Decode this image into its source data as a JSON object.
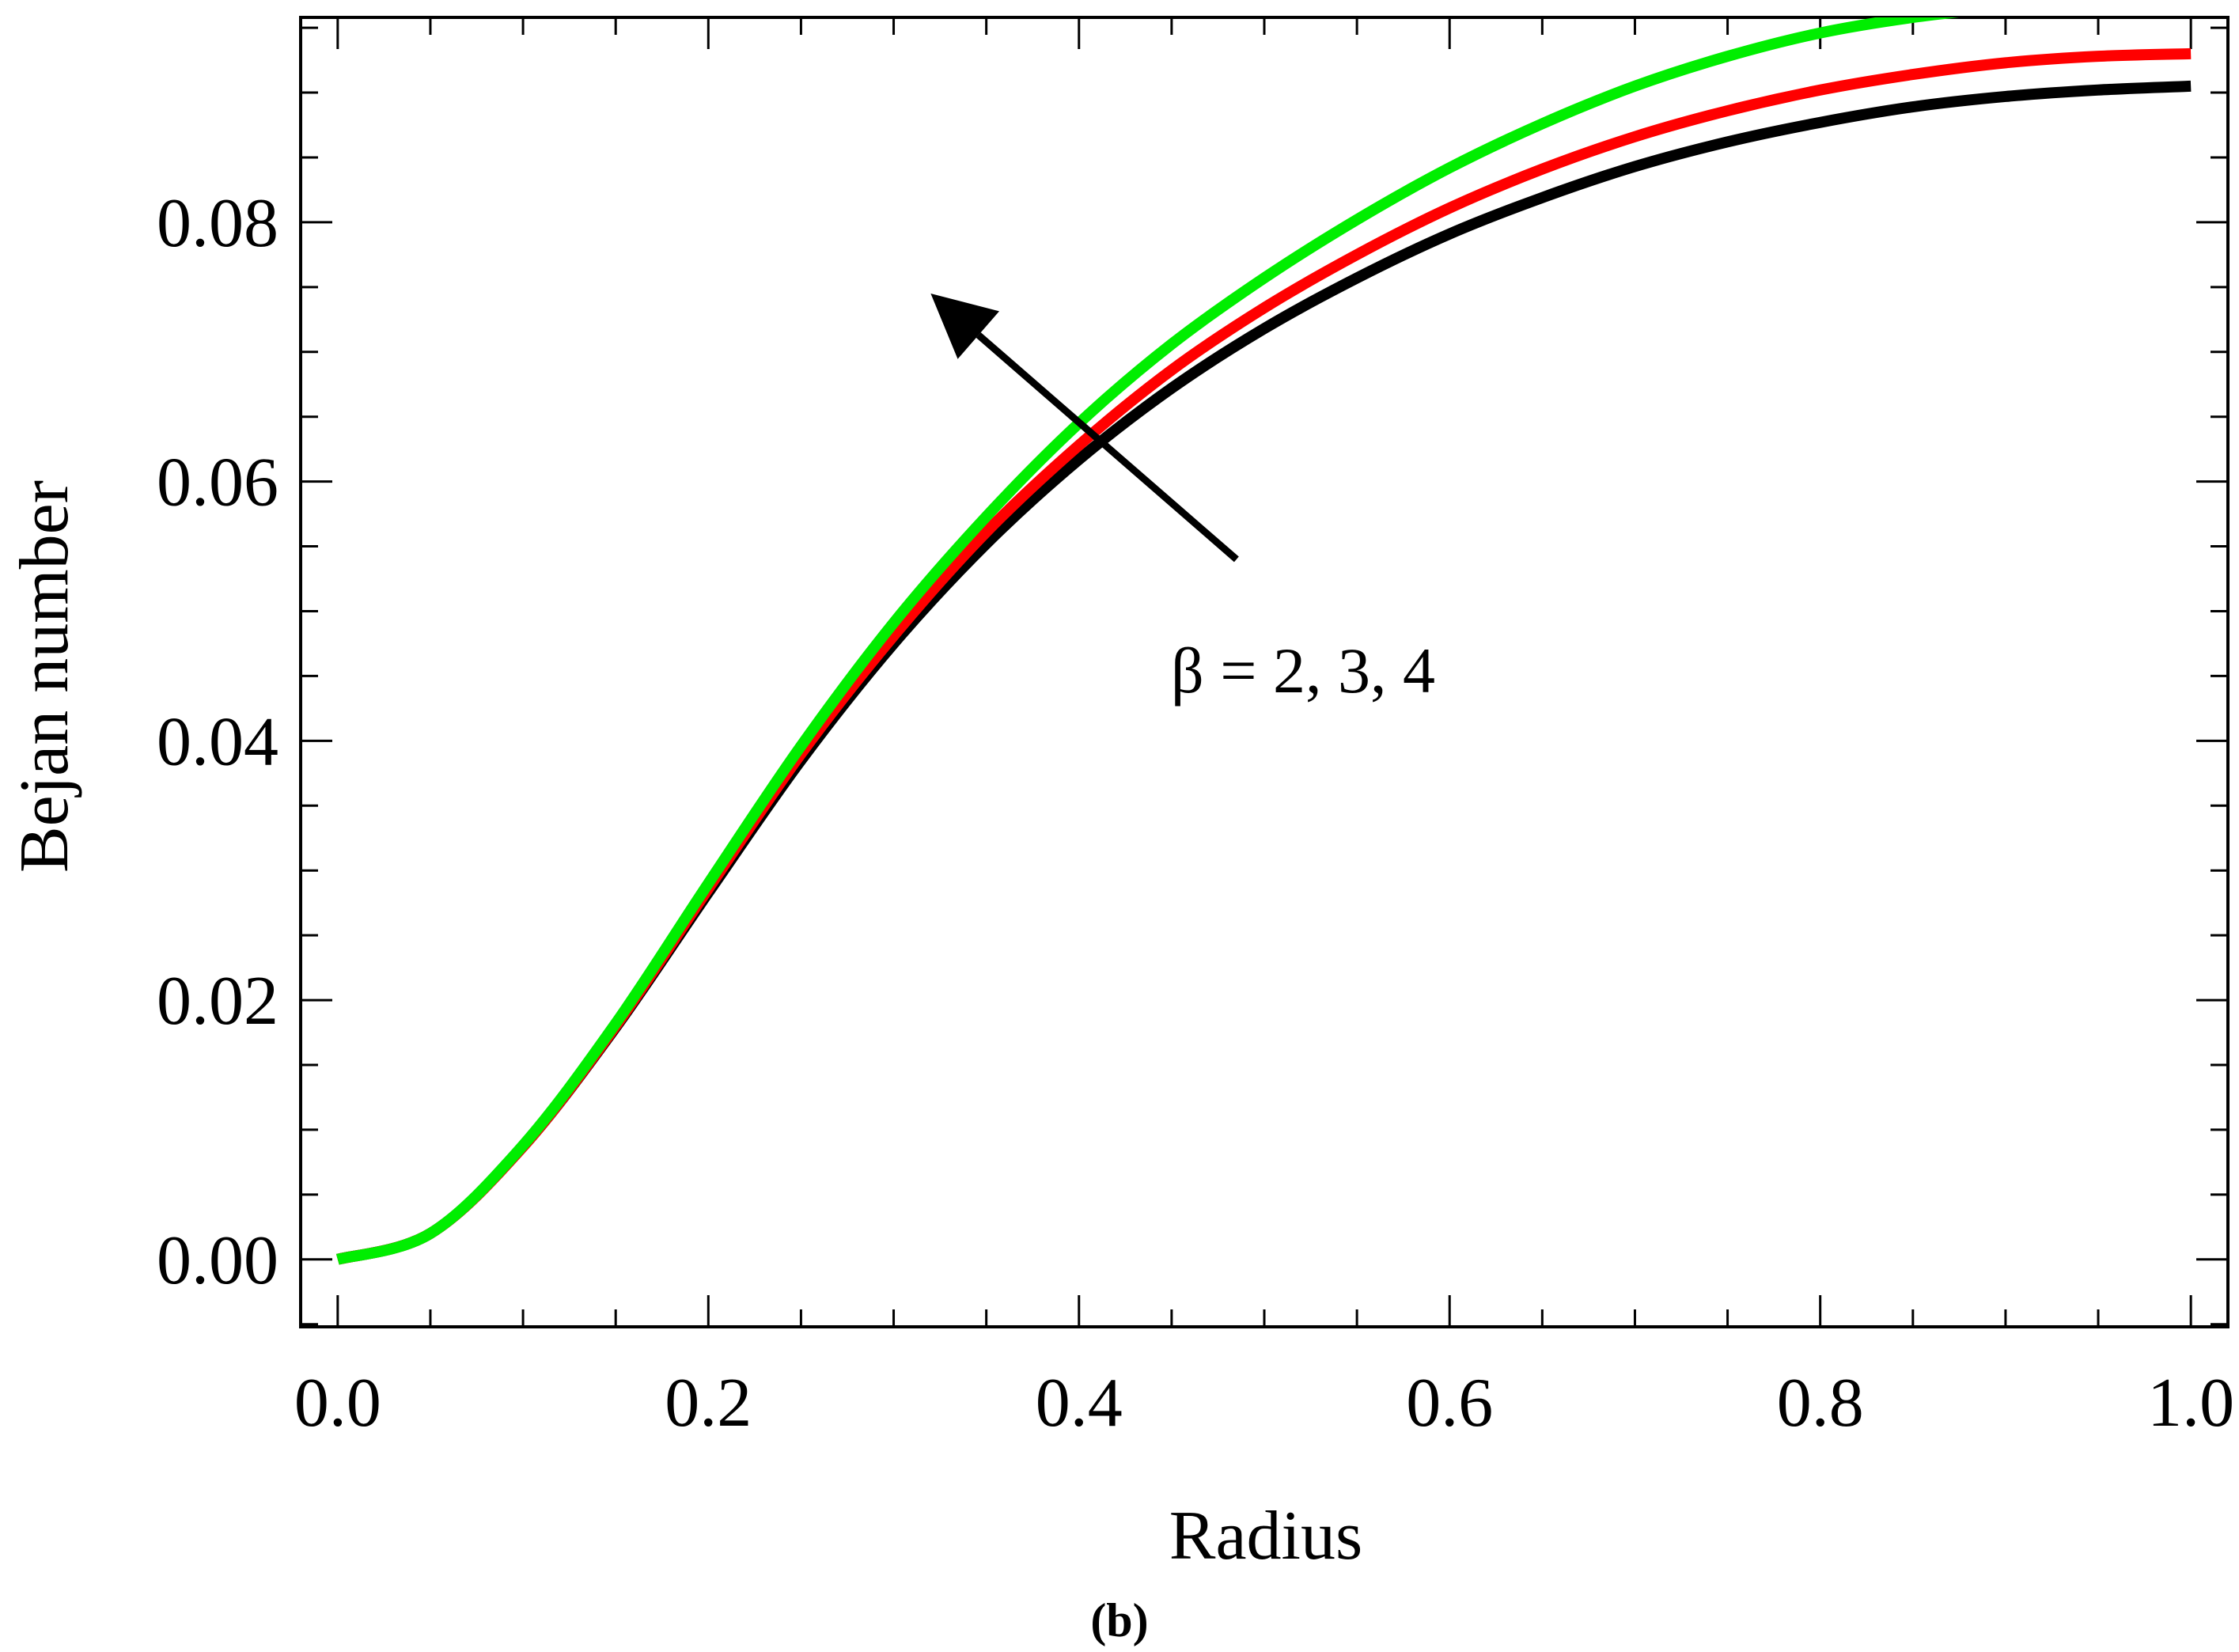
{
  "chart_data": {
    "type": "line",
    "title": "",
    "xlabel": "Radius",
    "ylabel": "Bejan number",
    "panel_label": "(b)",
    "xlim": [
      -0.02,
      1.02
    ],
    "ylim": [
      -0.0052,
      0.0958
    ],
    "x_ticks": [
      "0.0",
      "0.2",
      "0.4",
      "0.6",
      "0.8",
      "1.0"
    ],
    "y_ticks": [
      "0.00",
      "0.02",
      "0.04",
      "0.06",
      "0.08"
    ],
    "grid": false,
    "legend": "none",
    "annotation": {
      "text": "β = 2, 3, 4",
      "arrow_from": [
        0.485,
        0.054
      ],
      "arrow_to": [
        0.32,
        0.0745
      ]
    },
    "x": [
      0.0,
      0.05,
      0.1,
      0.15,
      0.2,
      0.25,
      0.3,
      0.35,
      0.4,
      0.45,
      0.5,
      0.55,
      0.6,
      0.65,
      0.7,
      0.75,
      0.8,
      0.85,
      0.9,
      0.95,
      1.0
    ],
    "series": [
      {
        "color": "#000000",
        "values": [
          0.0,
          0.002,
          0.0087,
          0.0179,
          0.0283,
          0.0385,
          0.0475,
          0.0552,
          0.0617,
          0.0672,
          0.0718,
          0.0757,
          0.0791,
          0.0819,
          0.0843,
          0.0862,
          0.0877,
          0.0889,
          0.0897,
          0.0902,
          0.0905
        ]
      },
      {
        "color": "#ff0000",
        "values": [
          0.0,
          0.002,
          0.0087,
          0.018,
          0.0286,
          0.039,
          0.0481,
          0.0561,
          0.0628,
          0.0686,
          0.0734,
          0.0775,
          0.0811,
          0.0841,
          0.0866,
          0.0886,
          0.0902,
          0.0914,
          0.0923,
          0.0928,
          0.093
        ]
      },
      {
        "color": "#00ee00",
        "values": [
          0.0,
          0.002,
          0.0088,
          0.0182,
          0.029,
          0.0396,
          0.0491,
          0.0573,
          0.0645,
          0.0706,
          0.0757,
          0.0802,
          0.0842,
          0.0876,
          0.0905,
          0.0928,
          0.0946,
          0.0958,
          0.0966,
          0.0972,
          0.0975
        ]
      }
    ]
  }
}
